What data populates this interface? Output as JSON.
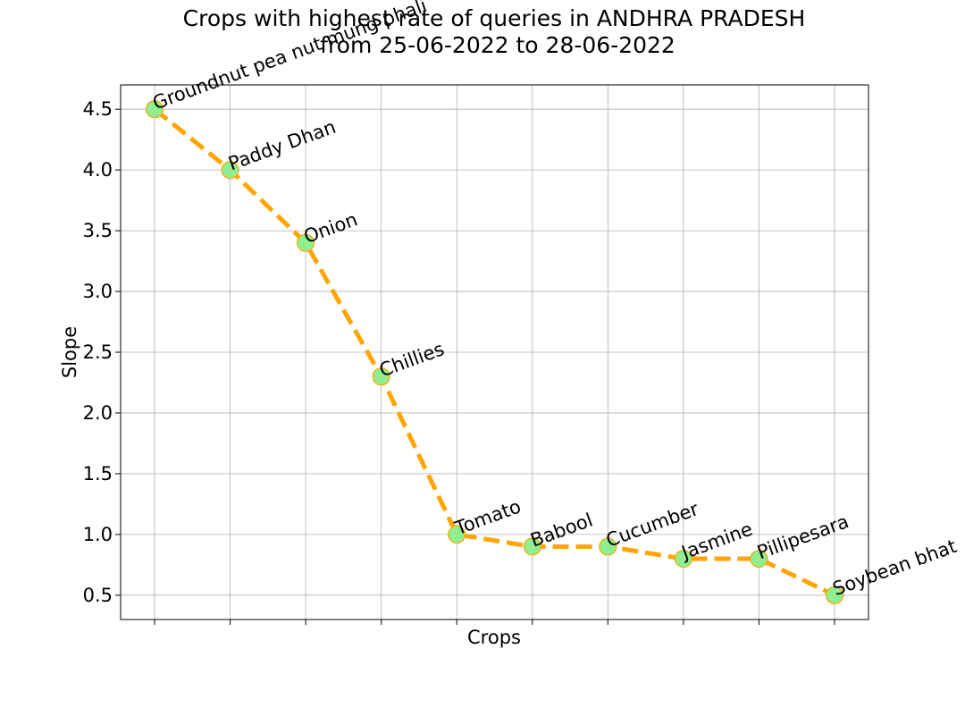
{
  "chart_data": {
    "type": "line",
    "title_line1": "Crops with highest rate of queries in ANDHRA PRADESH",
    "title_line2": "from 25-06-2022 to 28-06-2022",
    "xlabel": "Crops",
    "ylabel": "Slope",
    "categories": [
      "Groundnut pea nut mung phali",
      "Paddy Dhan",
      "Onion",
      "Chillies",
      "Tomato",
      "Babool",
      "Cucumber",
      "Jasmine",
      "Pillipesara",
      "Soybean bhat"
    ],
    "values": [
      4.5,
      4.0,
      3.4,
      2.3,
      1.0,
      0.9,
      0.9,
      0.8,
      0.8,
      0.5
    ],
    "yticks": [
      "0.5",
      "1.0",
      "1.5",
      "2.0",
      "2.5",
      "3.0",
      "3.5",
      "4.0",
      "4.5"
    ],
    "ylim": [
      0.3,
      4.7
    ],
    "grid": true,
    "line_color": "#FFA500",
    "marker_color": "#90EE90",
    "line_style": "dashed"
  }
}
